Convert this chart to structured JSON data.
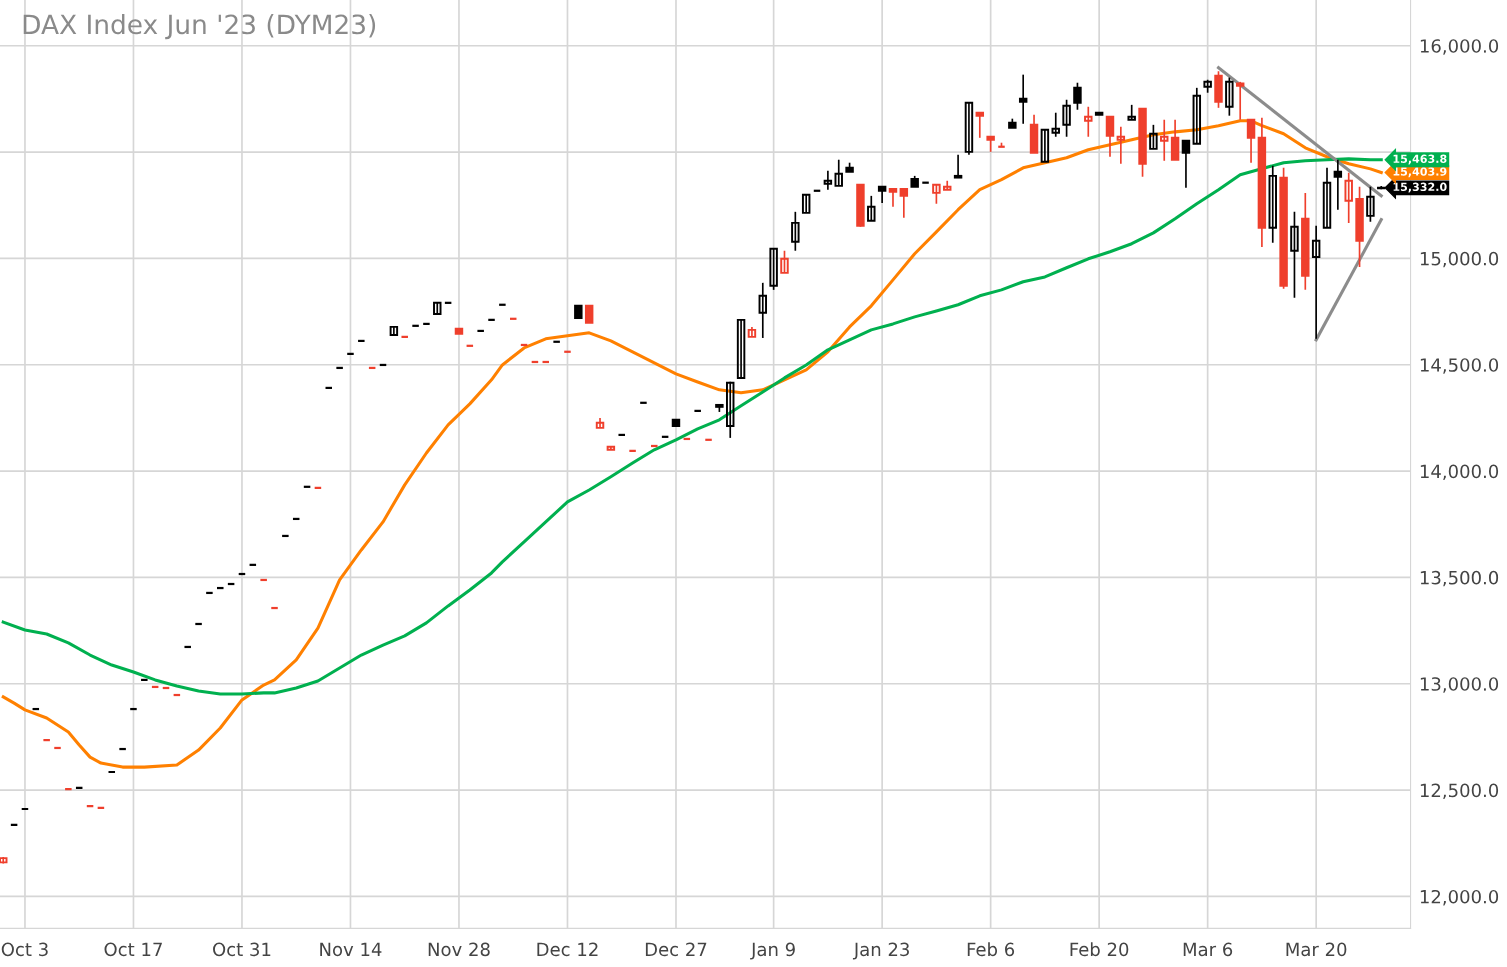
{
  "chart_data": {
    "type": "candlestick",
    "title": "DAX Index Jun '23 (DYM23)",
    "categories": [
      null,
      null,
      "Oct 3",
      null,
      null,
      null,
      null,
      null,
      null,
      null,
      null,
      null,
      "Oct 17",
      null,
      null,
      null,
      null,
      null,
      null,
      null,
      null,
      null,
      "Oct 31",
      null,
      null,
      null,
      null,
      null,
      null,
      null,
      null,
      null,
      "Nov 14",
      null,
      null,
      null,
      null,
      null,
      null,
      null,
      null,
      null,
      "Nov 28",
      null,
      null,
      null,
      null,
      null,
      null,
      null,
      null,
      null,
      "Dec 12",
      null,
      null,
      null,
      null,
      null,
      null,
      null,
      null,
      null,
      "Dec 27",
      null,
      null,
      null,
      null,
      null,
      null,
      null,
      null,
      "Jan 9",
      null,
      null,
      null,
      null,
      null,
      null,
      null,
      null,
      null,
      "Jan 23",
      null,
      null,
      null,
      null,
      null,
      null,
      null,
      null,
      null,
      "Feb 6",
      null,
      null,
      null,
      null,
      null,
      null,
      null,
      null,
      null,
      "Feb 20",
      null,
      null,
      null,
      null,
      null,
      null,
      null,
      null,
      null,
      "Mar 6",
      null,
      null,
      null,
      null,
      null,
      null,
      null,
      null,
      null,
      "Mar 20",
      null,
      null,
      null,
      null,
      null,
      null
    ],
    "ohlc": [
      [
        12160,
        12185,
        12155,
        12180
      ],
      [
        12336,
        12336,
        12336,
        12336
      ],
      [
        12411,
        12411,
        12411,
        12411
      ],
      [
        12881,
        12881,
        12881,
        12881
      ],
      [
        12735,
        12735,
        12735,
        12735
      ],
      [
        12698,
        12698,
        12698,
        12698
      ],
      [
        12505,
        12505,
        12505,
        12505
      ],
      [
        12510,
        12510,
        12510,
        12510
      ],
      [
        12425,
        12425,
        12425,
        12425
      ],
      [
        12416,
        12416,
        12416,
        12416
      ],
      [
        12585,
        12585,
        12585,
        12585
      ],
      [
        12693,
        12693,
        12693,
        12693
      ],
      [
        12881,
        12881,
        12881,
        12881
      ],
      [
        13018,
        13018,
        13018,
        13018
      ],
      [
        12985,
        12985,
        12985,
        12985
      ],
      [
        12980,
        12980,
        12980,
        12980
      ],
      [
        12947,
        12947,
        12947,
        12947
      ],
      [
        13173,
        13173,
        13173,
        13173
      ],
      [
        13281,
        13281,
        13281,
        13281
      ],
      [
        13427,
        13427,
        13427,
        13427
      ],
      [
        13450,
        13450,
        13450,
        13450
      ],
      [
        13469,
        13469,
        13469,
        13469
      ],
      [
        13516,
        13516,
        13516,
        13516
      ],
      [
        13559,
        13559,
        13559,
        13559
      ],
      [
        13488,
        13488,
        13488,
        13488
      ],
      [
        13356,
        13356,
        13356,
        13356
      ],
      [
        13695,
        13695,
        13695,
        13695
      ],
      [
        13775,
        13775,
        13775,
        13775
      ],
      [
        13926,
        13926,
        13926,
        13926
      ],
      [
        13921,
        13921,
        13921,
        13921
      ],
      [
        14391,
        14391,
        14391,
        14391
      ],
      [
        14485,
        14485,
        14485,
        14485
      ],
      [
        14551,
        14551,
        14551,
        14551
      ],
      [
        14612,
        14612,
        14612,
        14612
      ],
      [
        14485,
        14485,
        14485,
        14485
      ],
      [
        14499,
        14499,
        14499,
        14499
      ],
      [
        14640,
        14678,
        14640,
        14678
      ],
      [
        14631,
        14631,
        14631,
        14631
      ],
      [
        14683,
        14683,
        14683,
        14683
      ],
      [
        14692,
        14692,
        14692,
        14692
      ],
      [
        14739,
        14791,
        14739,
        14791
      ],
      [
        14791,
        14791,
        14791,
        14791
      ],
      [
        14669,
        14669,
        14645,
        14645
      ],
      [
        14589,
        14589,
        14589,
        14589
      ],
      [
        14659,
        14659,
        14659,
        14659
      ],
      [
        14711,
        14711,
        14711,
        14711
      ],
      [
        14782,
        14782,
        14782,
        14782
      ],
      [
        14716,
        14716,
        14716,
        14716
      ],
      [
        14593,
        14593,
        14593,
        14593
      ],
      [
        14513,
        14513,
        14513,
        14513
      ],
      [
        14513,
        14513,
        14513,
        14513
      ],
      [
        14608,
        14608,
        14608,
        14608
      ],
      [
        14561,
        14561,
        14561,
        14561
      ],
      [
        14777,
        14777,
        14720,
        14720
      ],
      [
        14777,
        14777,
        14697,
        14697
      ],
      [
        14203,
        14250,
        14203,
        14227
      ],
      [
        14100,
        14114,
        14100,
        14114
      ],
      [
        14170,
        14170,
        14170,
        14170
      ],
      [
        14095,
        14095,
        14095,
        14095
      ],
      [
        14321,
        14321,
        14321,
        14321
      ],
      [
        14118,
        14118,
        14118,
        14118
      ],
      [
        14161,
        14161,
        14161,
        14161
      ],
      [
        14241,
        14241,
        14212,
        14212
      ],
      [
        14151,
        14151,
        14151,
        14151
      ],
      [
        14283,
        14283,
        14283,
        14283
      ],
      [
        14147,
        14147,
        14147,
        14147
      ],
      [
        14302,
        14311,
        14278,
        14311
      ],
      [
        14212,
        14420,
        14156,
        14415
      ],
      [
        14438,
        14711,
        14438,
        14711
      ],
      [
        14631,
        14678,
        14631,
        14664
      ],
      [
        14744,
        14885,
        14626,
        14824
      ],
      [
        14871,
        15045,
        14852,
        15045
      ],
      [
        14932,
        15036,
        14932,
        14998
      ],
      [
        15078,
        15219,
        15036,
        15167
      ],
      [
        15214,
        15299,
        15214,
        15299
      ],
      [
        15318,
        15318,
        15318,
        15318
      ],
      [
        15351,
        15412,
        15323,
        15365
      ],
      [
        15341,
        15464,
        15341,
        15398
      ],
      [
        15426,
        15450,
        15407,
        15407
      ],
      [
        15346,
        15346,
        15149,
        15153
      ],
      [
        15177,
        15294,
        15177,
        15243
      ],
      [
        15337,
        15337,
        15261,
        15318
      ],
      [
        15327,
        15327,
        15243,
        15313
      ],
      [
        15327,
        15327,
        15191,
        15294
      ],
      [
        15374,
        15388,
        15337,
        15337
      ],
      [
        15356,
        15356,
        15356,
        15356
      ],
      [
        15308,
        15346,
        15257,
        15346
      ],
      [
        15323,
        15365,
        15323,
        15337
      ],
      [
        15380,
        15487,
        15380,
        15388
      ],
      [
        15501,
        15732,
        15487,
        15732
      ],
      [
        15685,
        15685,
        15567,
        15671
      ],
      [
        15572,
        15572,
        15501,
        15558
      ],
      [
        15525,
        15544,
        15525,
        15525
      ],
      [
        15638,
        15657,
        15614,
        15614
      ],
      [
        15751,
        15864,
        15633,
        15737
      ],
      [
        15628,
        15675,
        15497,
        15497
      ],
      [
        15454,
        15605,
        15454,
        15605
      ],
      [
        15591,
        15685,
        15572,
        15610
      ],
      [
        15628,
        15746,
        15572,
        15718
      ],
      [
        15802,
        15826,
        15699,
        15732
      ],
      [
        15647,
        15713,
        15572,
        15666
      ],
      [
        15685,
        15685,
        15675,
        15675
      ],
      [
        15666,
        15666,
        15478,
        15577
      ],
      [
        15558,
        15619,
        15445,
        15572
      ],
      [
        15652,
        15722,
        15652,
        15666
      ],
      [
        15704,
        15704,
        15384,
        15445
      ],
      [
        15515,
        15628,
        15515,
        15586
      ],
      [
        15553,
        15652,
        15459,
        15572
      ],
      [
        15567,
        15652,
        15464,
        15464
      ],
      [
        15553,
        15553,
        15332,
        15497
      ],
      [
        15539,
        15802,
        15539,
        15765
      ],
      [
        15807,
        15840,
        15779,
        15831
      ],
      [
        15859,
        15880,
        15708,
        15737
      ],
      [
        15713,
        15850,
        15671,
        15831
      ],
      [
        15822,
        15830,
        15652,
        15812
      ],
      [
        15652,
        15652,
        15450,
        15567
      ],
      [
        15567,
        15661,
        15054,
        15144
      ],
      [
        15144,
        15436,
        15073,
        15388
      ],
      [
        15379,
        15426,
        14857,
        14871
      ],
      [
        15036,
        15219,
        14815,
        15149
      ],
      [
        15186,
        15308,
        14852,
        14918
      ],
      [
        15007,
        15153,
        14622,
        15083
      ],
      [
        15144,
        15426,
        15144,
        15356
      ],
      [
        15407,
        15464,
        15229,
        15384
      ],
      [
        15271,
        15403,
        15167,
        15365
      ],
      [
        15280,
        15337,
        14960,
        15083
      ],
      [
        15200,
        15337,
        15172,
        15290
      ],
      [
        15330,
        15340,
        15325,
        15332
      ]
    ],
    "colors": [
      "#ef3f2c",
      "#000000",
      "#000000",
      "#000000",
      "#ef3f2c",
      "#ef3f2c",
      "#ef3f2c",
      "#000000",
      "#ef3f2c",
      "#ef3f2c",
      "#000000",
      "#000000",
      "#000000",
      "#000000",
      "#ef3f2c",
      "#ef3f2c",
      "#ef3f2c",
      "#000000",
      "#000000",
      "#000000",
      "#000000",
      "#000000",
      "#000000",
      "#000000",
      "#ef3f2c",
      "#ef3f2c",
      "#000000",
      "#000000",
      "#000000",
      "#ef3f2c",
      "#000000",
      "#000000",
      "#000000",
      "#000000",
      "#ef3f2c",
      "#000000",
      "#000000",
      "#ef3f2c",
      "#000000",
      "#000000",
      "#000000",
      "#000000",
      "#ef3f2c",
      "#ef3f2c",
      "#000000",
      "#000000",
      "#000000",
      "#ef3f2c",
      "#ef3f2c",
      "#ef3f2c",
      "#ef3f2c",
      "#000000",
      "#ef3f2c",
      "#000000",
      "#ef3f2c",
      "#ef3f2c",
      "#ef3f2c",
      "#000000",
      "#ef3f2c",
      "#000000",
      "#ef3f2c",
      "#000000",
      "#000000",
      "#ef3f2c",
      "#000000",
      "#ef3f2c",
      "#000000",
      "#000000",
      "#000000",
      "#ef3f2c",
      "#000000",
      "#000000",
      "#ef3f2c",
      "#000000",
      "#000000",
      "#000000",
      "#000000",
      "#000000",
      "#000000",
      "#ef3f2c",
      "#000000",
      "#000000",
      "#ef3f2c",
      "#ef3f2c",
      "#000000",
      "#000000",
      "#ef3f2c",
      "#ef3f2c",
      "#000000",
      "#000000",
      "#ef3f2c",
      "#ef3f2c",
      "#ef3f2c",
      "#000000",
      "#000000",
      "#ef3f2c",
      "#000000",
      "#000000",
      "#000000",
      "#000000",
      "#ef3f2c",
      "#000000",
      "#ef3f2c",
      "#ef3f2c",
      "#000000",
      "#ef3f2c",
      "#000000",
      "#ef3f2c",
      "#ef3f2c",
      "#000000",
      "#000000",
      "#000000",
      "#ef3f2c",
      "#000000",
      "#ef3f2c",
      "#ef3f2c",
      "#ef3f2c",
      "#000000",
      "#ef3f2c",
      "#000000",
      "#ef3f2c",
      "#000000",
      "#000000",
      "#000000",
      "#ef3f2c",
      "#ef3f2c",
      "#000000",
      "#000000"
    ],
    "value_labels": [
      null,
      null,
      null,
      null,
      null,
      null,
      null,
      null,
      null,
      null,
      null,
      null,
      null,
      null,
      null,
      null,
      null,
      null,
      null,
      null,
      null,
      null,
      null,
      null,
      null,
      null,
      null,
      null,
      null,
      null,
      null,
      null,
      null,
      null,
      null,
      null,
      null,
      null,
      null,
      null,
      null,
      null,
      null,
      null,
      null,
      null,
      null,
      null,
      null,
      null,
      null,
      null,
      null,
      null,
      null,
      null,
      null,
      null,
      null,
      null,
      null,
      null,
      null,
      null,
      null,
      null,
      null,
      null,
      null,
      null,
      null,
      null,
      null,
      null,
      null,
      null,
      null,
      null,
      null,
      null,
      null,
      null,
      null,
      null,
      null,
      null,
      null,
      null,
      null,
      null,
      null,
      null,
      null,
      null,
      null,
      null,
      null,
      null,
      null,
      null,
      null,
      null,
      null,
      null,
      null,
      null,
      null,
      null,
      null,
      null,
      null,
      null,
      null,
      null,
      null,
      null,
      null,
      null,
      null,
      null,
      null,
      null,
      null,
      null,
      null,
      null,
      null,
      "15,332.0"
    ],
    "series": [
      {
        "type": "line",
        "color": "#ff8000",
        "values": [
          12938,
          12909,
          12877,
          null,
          12839,
          null,
          12773,
          12712,
          12655,
          12627,
          null,
          12608,
          null,
          12608,
          null,
          null,
          12618,
          null,
          12688,
          null,
          12792,
          null,
          12924,
          null,
          12994,
          13018,
          null,
          13112,
          null,
          13262,
          null,
          13488,
          null,
          13629,
          null,
          13761,
          null,
          13935,
          null,
          14085,
          null,
          14217,
          null,
          14316,
          null,
          14429,
          14499,
          null,
          14579,
          null,
          14622,
          null,
          14636,
          null,
          14650,
          null,
          14612,
          null,
          14561,
          null,
          14509,
          null,
          14457,
          null,
          14419,
          null,
          14382,
          null,
          14368,
          null,
          14382,
          null,
          14429,
          null,
          14476,
          null,
          14561,
          null,
          14678,
          null,
          14777,
          null,
          14899,
          null,
          15022,
          null,
          15125,
          null,
          15229,
          null,
          15323,
          null,
          15370,
          null,
          15426,
          null,
          15450,
          null,
          15473,
          null,
          15511,
          null,
          15534,
          null,
          15558,
          null,
          15581,
          null,
          15595,
          null,
          15605,
          null,
          15624,
          null,
          15647,
          15647,
          15624,
          null,
          15586,
          null,
          15520,
          null,
          15478,
          null,
          15445,
          null,
          15421,
          15403.9
        ],
        "value_labels": [
          null,
          null,
          null,
          null,
          null,
          null,
          null,
          null,
          null,
          null,
          null,
          null,
          null,
          null,
          null,
          null,
          null,
          null,
          null,
          null,
          null,
          null,
          null,
          null,
          null,
          null,
          null,
          null,
          null,
          null,
          null,
          null,
          null,
          null,
          null,
          null,
          null,
          null,
          null,
          null,
          null,
          null,
          null,
          null,
          null,
          null,
          null,
          null,
          null,
          null,
          null,
          null,
          null,
          null,
          null,
          null,
          null,
          null,
          null,
          null,
          null,
          null,
          null,
          null,
          null,
          null,
          null,
          null,
          null,
          null,
          null,
          null,
          null,
          null,
          null,
          null,
          null,
          null,
          null,
          null,
          null,
          null,
          null,
          null,
          null,
          null,
          null,
          null,
          null,
          null,
          null,
          null,
          null,
          null,
          null,
          null,
          null,
          null,
          null,
          null,
          null,
          null,
          null,
          null,
          null,
          null,
          null,
          null,
          null,
          null,
          null,
          null,
          null,
          null,
          null,
          null,
          null,
          null,
          null,
          null,
          null,
          null,
          null,
          null,
          null,
          null,
          null,
          "15,403.9"
        ]
      },
      {
        "type": "line",
        "color": "#00b04f",
        "values": [
          13290,
          null,
          13253,
          null,
          13234,
          null,
          13192,
          null,
          13135,
          null,
          13088,
          null,
          13055,
          null,
          13018,
          null,
          12989,
          null,
          12966,
          null,
          12952,
          null,
          12952,
          null,
          12957,
          12957,
          null,
          12980,
          null,
          13013,
          null,
          13074,
          null,
          13135,
          null,
          13182,
          null,
          13225,
          null,
          13286,
          null,
          13366,
          null,
          13441,
          null,
          13521,
          13573,
          null,
          13667,
          null,
          13761,
          null,
          13855,
          null,
          13911,
          null,
          13973,
          null,
          14038,
          null,
          14100,
          null,
          14147,
          null,
          14198,
          null,
          14241,
          null,
          14307,
          null,
          14372,
          null,
          14438,
          null,
          14499,
          null,
          14570,
          null,
          14617,
          null,
          14664,
          null,
          14692,
          null,
          14725,
          null,
          14753,
          null,
          14782,
          null,
          14824,
          null,
          14852,
          null,
          14890,
          null,
          14913,
          null,
          14956,
          null,
          14998,
          null,
          15031,
          null,
          15069,
          null,
          15120,
          null,
          15186,
          null,
          15257,
          null,
          15323,
          null,
          15393,
          null,
          null,
          null,
          15450,
          null,
          15459,
          null,
          15464,
          null,
          15468,
          null,
          15464,
          15463.8
        ],
        "value_labels": [
          null,
          null,
          null,
          null,
          null,
          null,
          null,
          null,
          null,
          null,
          null,
          null,
          null,
          null,
          null,
          null,
          null,
          null,
          null,
          null,
          null,
          null,
          null,
          null,
          null,
          null,
          null,
          null,
          null,
          null,
          null,
          null,
          null,
          null,
          null,
          null,
          null,
          null,
          null,
          null,
          null,
          null,
          null,
          null,
          null,
          null,
          null,
          null,
          null,
          null,
          null,
          null,
          null,
          null,
          null,
          null,
          null,
          null,
          null,
          null,
          null,
          null,
          null,
          null,
          null,
          null,
          null,
          null,
          null,
          null,
          null,
          null,
          null,
          null,
          null,
          null,
          null,
          null,
          null,
          null,
          null,
          null,
          null,
          null,
          null,
          null,
          null,
          null,
          null,
          null,
          null,
          null,
          null,
          null,
          null,
          null,
          null,
          null,
          null,
          null,
          null,
          null,
          null,
          null,
          null,
          null,
          null,
          null,
          null,
          null,
          null,
          null,
          null,
          null,
          null,
          null,
          null,
          null,
          null,
          null,
          null,
          null,
          null,
          null,
          null,
          null,
          null,
          "15,463.8"
        ]
      },
      {
        "type": "line",
        "color": "#8c8c8c",
        "values": [
          null,
          null,
          null,
          null,
          null,
          null,
          null,
          null,
          null,
          null,
          null,
          null,
          null,
          null,
          null,
          null,
          null,
          null,
          null,
          null,
          null,
          null,
          null,
          null,
          null,
          null,
          null,
          null,
          null,
          null,
          null,
          null,
          null,
          null,
          null,
          null,
          null,
          null,
          null,
          null,
          null,
          null,
          null,
          null,
          null,
          null,
          null,
          null,
          null,
          null,
          null,
          null,
          null,
          null,
          null,
          null,
          null,
          null,
          null,
          null,
          null,
          null,
          null,
          null,
          null,
          null,
          null,
          null,
          null,
          null,
          null,
          null,
          null,
          null,
          null,
          null,
          null,
          null,
          null,
          null,
          null,
          null,
          null,
          null,
          null,
          null,
          null,
          null,
          null,
          null,
          null,
          null,
          null,
          null,
          null,
          null,
          null,
          null,
          null,
          null,
          null,
          null,
          null,
          null,
          null,
          null,
          null,
          null,
          null,
          null,
          null,
          null,
          15897,
          null,
          null,
          null,
          null,
          null,
          null,
          null,
          null,
          null,
          null,
          null,
          null,
          null,
          null,
          15294
        ]
      },
      {
        "type": "line",
        "color": "#8c8c8c",
        "values": [
          null,
          null,
          null,
          null,
          null,
          null,
          null,
          null,
          null,
          null,
          null,
          null,
          null,
          null,
          null,
          null,
          null,
          null,
          null,
          null,
          null,
          null,
          null,
          null,
          null,
          null,
          null,
          null,
          null,
          null,
          null,
          null,
          null,
          null,
          null,
          null,
          null,
          null,
          null,
          null,
          null,
          null,
          null,
          null,
          null,
          null,
          null,
          null,
          null,
          null,
          null,
          null,
          null,
          null,
          null,
          null,
          null,
          null,
          null,
          null,
          null,
          null,
          null,
          null,
          null,
          null,
          null,
          null,
          null,
          null,
          null,
          null,
          null,
          null,
          null,
          null,
          null,
          null,
          null,
          null,
          null,
          null,
          null,
          null,
          null,
          null,
          null,
          null,
          null,
          null,
          null,
          null,
          null,
          null,
          null,
          null,
          null,
          null,
          null,
          null,
          null,
          null,
          null,
          null,
          null,
          null,
          null,
          null,
          null,
          null,
          null,
          null,
          null,
          null,
          null,
          null,
          null,
          null,
          null,
          null,
          null,
          14617,
          null,
          null,
          null,
          null,
          null,
          15182
        ]
      }
    ],
    "ylim": [
      11850,
      16215
    ],
    "yticks": [
      {
        "value": 12000,
        "label": "12,000.0"
      },
      {
        "value": 12500,
        "label": "12,500.0"
      },
      {
        "value": 13000,
        "label": "13,000.0"
      },
      {
        "value": 13500,
        "label": "13,500.0"
      },
      {
        "value": 14000,
        "label": "14,000.0"
      },
      {
        "value": 14500,
        "label": "14,500.0"
      },
      {
        "value": 15000,
        "label": "15,000.0"
      },
      {
        "value": 15500,
        "label": null
      },
      {
        "value": 16000,
        "label": "16,000.0"
      }
    ],
    "grid": true
  }
}
